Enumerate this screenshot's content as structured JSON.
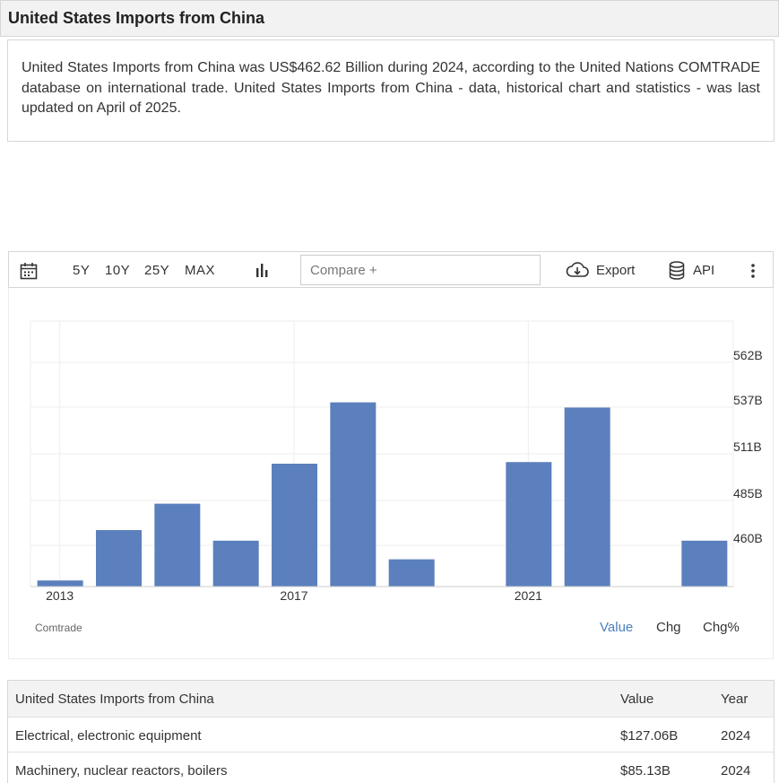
{
  "page_title": "United States Imports from China",
  "description": "United States Imports from China was US$462.62 Billion during 2024, according to the United Nations COMTRADE database on international trade. United States Imports from China - data, historical chart and statistics - was last updated on April of 2025.",
  "toolbar": {
    "calendar_icon": "calendar-icon",
    "ranges": [
      "5Y",
      "10Y",
      "25Y",
      "MAX"
    ],
    "chart_type_icon": "bar-chart-icon",
    "compare_placeholder": "Compare +",
    "export_label": "Export",
    "export_icon": "cloud-download-icon",
    "api_label": "API",
    "api_icon": "database-icon",
    "more_icon": "more-vertical-icon"
  },
  "chart_data": {
    "type": "bar",
    "categories": [
      "2013",
      "2014",
      "2015",
      "2016",
      "2017",
      "2018",
      "2019",
      "2020",
      "2021",
      "2022",
      "2023",
      "2024"
    ],
    "values": [
      440.4,
      468.5,
      483.2,
      462.6,
      505.5,
      539.7,
      452.2,
      435.5,
      506.4,
      536.8,
      426.9,
      462.6
    ],
    "x_tick_labels": [
      "2013",
      "2017",
      "2021"
    ],
    "y_tick_labels": [
      "460B",
      "485B",
      "511B",
      "537B",
      "562B"
    ],
    "y_ticks": [
      460,
      485,
      511,
      537,
      562
    ],
    "ylim": [
      437,
      585
    ],
    "bar_color": "#5b80bd",
    "grid": true,
    "source": "Comtrade"
  },
  "value_tabs": [
    "Value",
    "Chg",
    "Chg%"
  ],
  "accent_color": "#4a7fc1",
  "table": {
    "headers": [
      "United States Imports from China",
      "Value",
      "Year"
    ],
    "rows": [
      [
        "Electrical, electronic equipment",
        "$127.06B",
        "2024"
      ],
      [
        "Machinery, nuclear reactors, boilers",
        "$85.13B",
        "2024"
      ]
    ]
  }
}
